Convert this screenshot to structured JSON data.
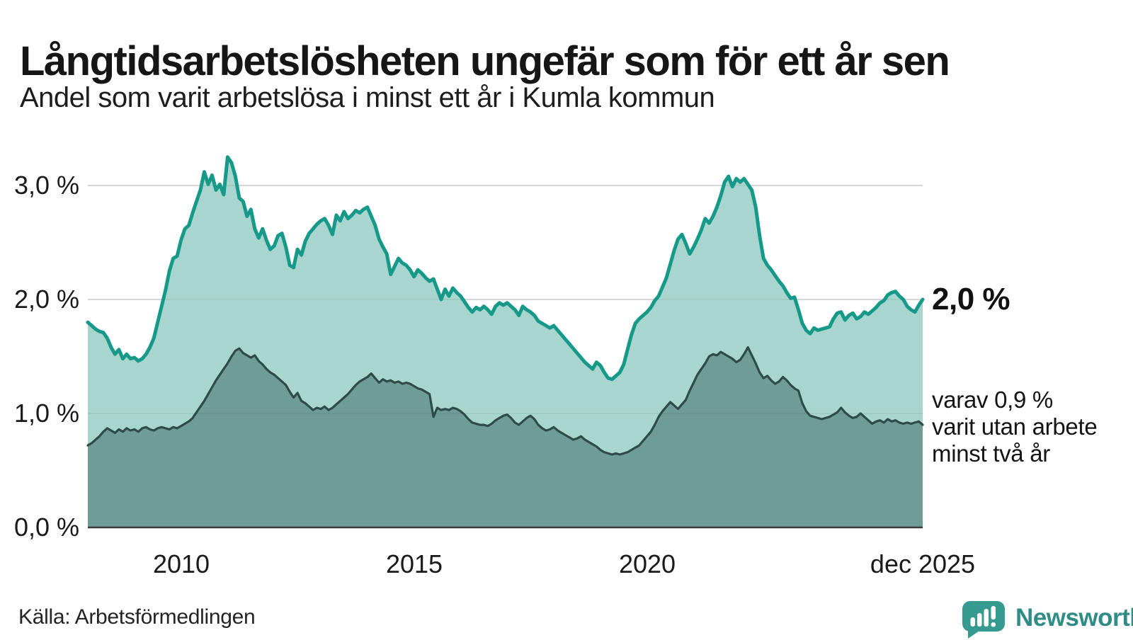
{
  "header": {
    "title": "Långtidsarbetslösheten ungefär som för ett år sen",
    "subtitle": "Andel som varit arbetslösa i minst ett år i Kumla kommun"
  },
  "axes": {
    "y_ticks": [
      "3,0 %",
      "2,0 %",
      "1,0 %",
      "0,0 %"
    ],
    "x_ticks": [
      "2010",
      "2015",
      "2020",
      "dec 2025"
    ]
  },
  "annotations": {
    "end_value_primary": "2,0 %",
    "end_value_secondary": "varav 0,9 %\nvarit utan arbete\nminst två år"
  },
  "footer": {
    "source": "Källa: Arbetsförmedlingen",
    "brand": "Newsworthy"
  },
  "colors": {
    "line_primary": "#17998a",
    "fill_primary": "#a8d6ce",
    "line_secondary": "#2e4c47",
    "fill_secondary": "#6f9c97",
    "gridline": "#e2e2e5",
    "gridline_overlay": "rgba(0,0,0,0.05)",
    "axis_line": "#3b3b3b",
    "brand_teal": "#379a91"
  },
  "chart_data": {
    "type": "area",
    "title": "Långtidsarbetslösheten ungefär som för ett år sen",
    "subtitle": "Andel som varit arbetslösa i minst ett år i Kumla kommun",
    "unit": "%",
    "frequency": "monthly",
    "x_start": "2008-01",
    "x_end": "2025-12",
    "ylim": [
      0,
      3.3
    ],
    "y_gridlines": [
      0,
      1,
      2,
      3
    ],
    "grid": true,
    "legend_position": "right-annotations",
    "end_values": {
      "minst_ett_ar": "2,0 %",
      "minst_tva_ar": "0,9 %"
    },
    "series": [
      {
        "name": "Andel arbetslösa minst ett år",
        "values": [
          1.8,
          1.77,
          1.74,
          1.72,
          1.71,
          1.66,
          1.58,
          1.52,
          1.56,
          1.48,
          1.52,
          1.48,
          1.49,
          1.46,
          1.48,
          1.52,
          1.58,
          1.66,
          1.8,
          1.94,
          2.08,
          2.25,
          2.36,
          2.38,
          2.52,
          2.62,
          2.65,
          2.76,
          2.86,
          2.96,
          3.12,
          3.01,
          3.09,
          2.96,
          3.01,
          2.92,
          3.25,
          3.2,
          3.08,
          2.89,
          2.86,
          2.73,
          2.79,
          2.62,
          2.54,
          2.62,
          2.52,
          2.44,
          2.47,
          2.56,
          2.58,
          2.46,
          2.3,
          2.28,
          2.44,
          2.39,
          2.51,
          2.58,
          2.62,
          2.66,
          2.69,
          2.71,
          2.65,
          2.57,
          2.74,
          2.69,
          2.77,
          2.71,
          2.74,
          2.78,
          2.76,
          2.79,
          2.81,
          2.73,
          2.65,
          2.53,
          2.46,
          2.4,
          2.22,
          2.29,
          2.36,
          2.32,
          2.3,
          2.26,
          2.2,
          2.26,
          2.23,
          2.19,
          2.16,
          2.18,
          2.09,
          2.0,
          2.09,
          2.03,
          2.1,
          2.06,
          2.03,
          1.98,
          1.93,
          1.89,
          1.93,
          1.91,
          1.94,
          1.91,
          1.87,
          1.94,
          1.97,
          1.95,
          1.97,
          1.94,
          1.91,
          1.86,
          1.94,
          1.91,
          1.89,
          1.86,
          1.81,
          1.79,
          1.77,
          1.75,
          1.77,
          1.73,
          1.69,
          1.65,
          1.61,
          1.57,
          1.53,
          1.49,
          1.45,
          1.42,
          1.39,
          1.45,
          1.42,
          1.36,
          1.31,
          1.3,
          1.33,
          1.36,
          1.43,
          1.56,
          1.69,
          1.79,
          1.83,
          1.86,
          1.89,
          1.93,
          1.99,
          2.03,
          2.11,
          2.19,
          2.31,
          2.43,
          2.53,
          2.57,
          2.49,
          2.4,
          2.46,
          2.53,
          2.61,
          2.71,
          2.67,
          2.73,
          2.81,
          2.91,
          3.03,
          3.08,
          2.99,
          3.06,
          3.03,
          3.06,
          3.01,
          2.96,
          2.81,
          2.56,
          2.36,
          2.3,
          2.26,
          2.21,
          2.16,
          2.12,
          2.06,
          2.01,
          2.02,
          1.91,
          1.79,
          1.73,
          1.7,
          1.75,
          1.73,
          1.74,
          1.75,
          1.76,
          1.83,
          1.88,
          1.89,
          1.82,
          1.86,
          1.88,
          1.83,
          1.85,
          1.89,
          1.87,
          1.9,
          1.93,
          1.97,
          1.99,
          2.04,
          2.06,
          2.07,
          2.03,
          2.0,
          1.94,
          1.91,
          1.89,
          1.95,
          2.0
        ]
      },
      {
        "name": "Andel arbetslösa minst två år",
        "values": [
          0.72,
          0.74,
          0.77,
          0.8,
          0.84,
          0.87,
          0.85,
          0.83,
          0.86,
          0.84,
          0.87,
          0.85,
          0.86,
          0.84,
          0.87,
          0.88,
          0.86,
          0.85,
          0.87,
          0.88,
          0.87,
          0.86,
          0.88,
          0.87,
          0.89,
          0.91,
          0.93,
          0.96,
          1.01,
          1.06,
          1.11,
          1.17,
          1.23,
          1.29,
          1.34,
          1.39,
          1.44,
          1.5,
          1.55,
          1.57,
          1.53,
          1.51,
          1.49,
          1.51,
          1.46,
          1.43,
          1.39,
          1.36,
          1.34,
          1.31,
          1.28,
          1.25,
          1.19,
          1.14,
          1.18,
          1.11,
          1.09,
          1.06,
          1.03,
          1.05,
          1.04,
          1.06,
          1.03,
          1.05,
          1.08,
          1.11,
          1.14,
          1.17,
          1.21,
          1.25,
          1.28,
          1.3,
          1.32,
          1.35,
          1.31,
          1.27,
          1.3,
          1.28,
          1.29,
          1.27,
          1.28,
          1.26,
          1.27,
          1.26,
          1.24,
          1.22,
          1.21,
          1.19,
          1.17,
          0.97,
          1.05,
          1.03,
          1.04,
          1.03,
          1.05,
          1.04,
          1.02,
          0.99,
          0.95,
          0.92,
          0.91,
          0.9,
          0.9,
          0.89,
          0.91,
          0.94,
          0.96,
          0.98,
          0.99,
          0.96,
          0.92,
          0.9,
          0.93,
          0.96,
          0.98,
          0.95,
          0.9,
          0.87,
          0.85,
          0.86,
          0.88,
          0.85,
          0.83,
          0.81,
          0.79,
          0.77,
          0.78,
          0.8,
          0.77,
          0.75,
          0.73,
          0.71,
          0.68,
          0.66,
          0.65,
          0.64,
          0.65,
          0.64,
          0.65,
          0.66,
          0.68,
          0.7,
          0.72,
          0.76,
          0.8,
          0.84,
          0.9,
          0.97,
          1.02,
          1.06,
          1.1,
          1.07,
          1.04,
          1.08,
          1.12,
          1.2,
          1.27,
          1.34,
          1.39,
          1.44,
          1.5,
          1.52,
          1.51,
          1.54,
          1.52,
          1.5,
          1.48,
          1.45,
          1.47,
          1.52,
          1.58,
          1.51,
          1.44,
          1.36,
          1.31,
          1.33,
          1.29,
          1.26,
          1.28,
          1.32,
          1.29,
          1.25,
          1.22,
          1.2,
          1.09,
          1.02,
          0.98,
          0.97,
          0.96,
          0.95,
          0.96,
          0.97,
          0.99,
          1.01,
          1.05,
          1.01,
          0.98,
          0.96,
          0.97,
          1.0,
          0.97,
          0.94,
          0.91,
          0.93,
          0.94,
          0.92,
          0.95,
          0.93,
          0.94,
          0.92,
          0.91,
          0.92,
          0.91,
          0.92,
          0.93,
          0.9
        ]
      }
    ]
  }
}
